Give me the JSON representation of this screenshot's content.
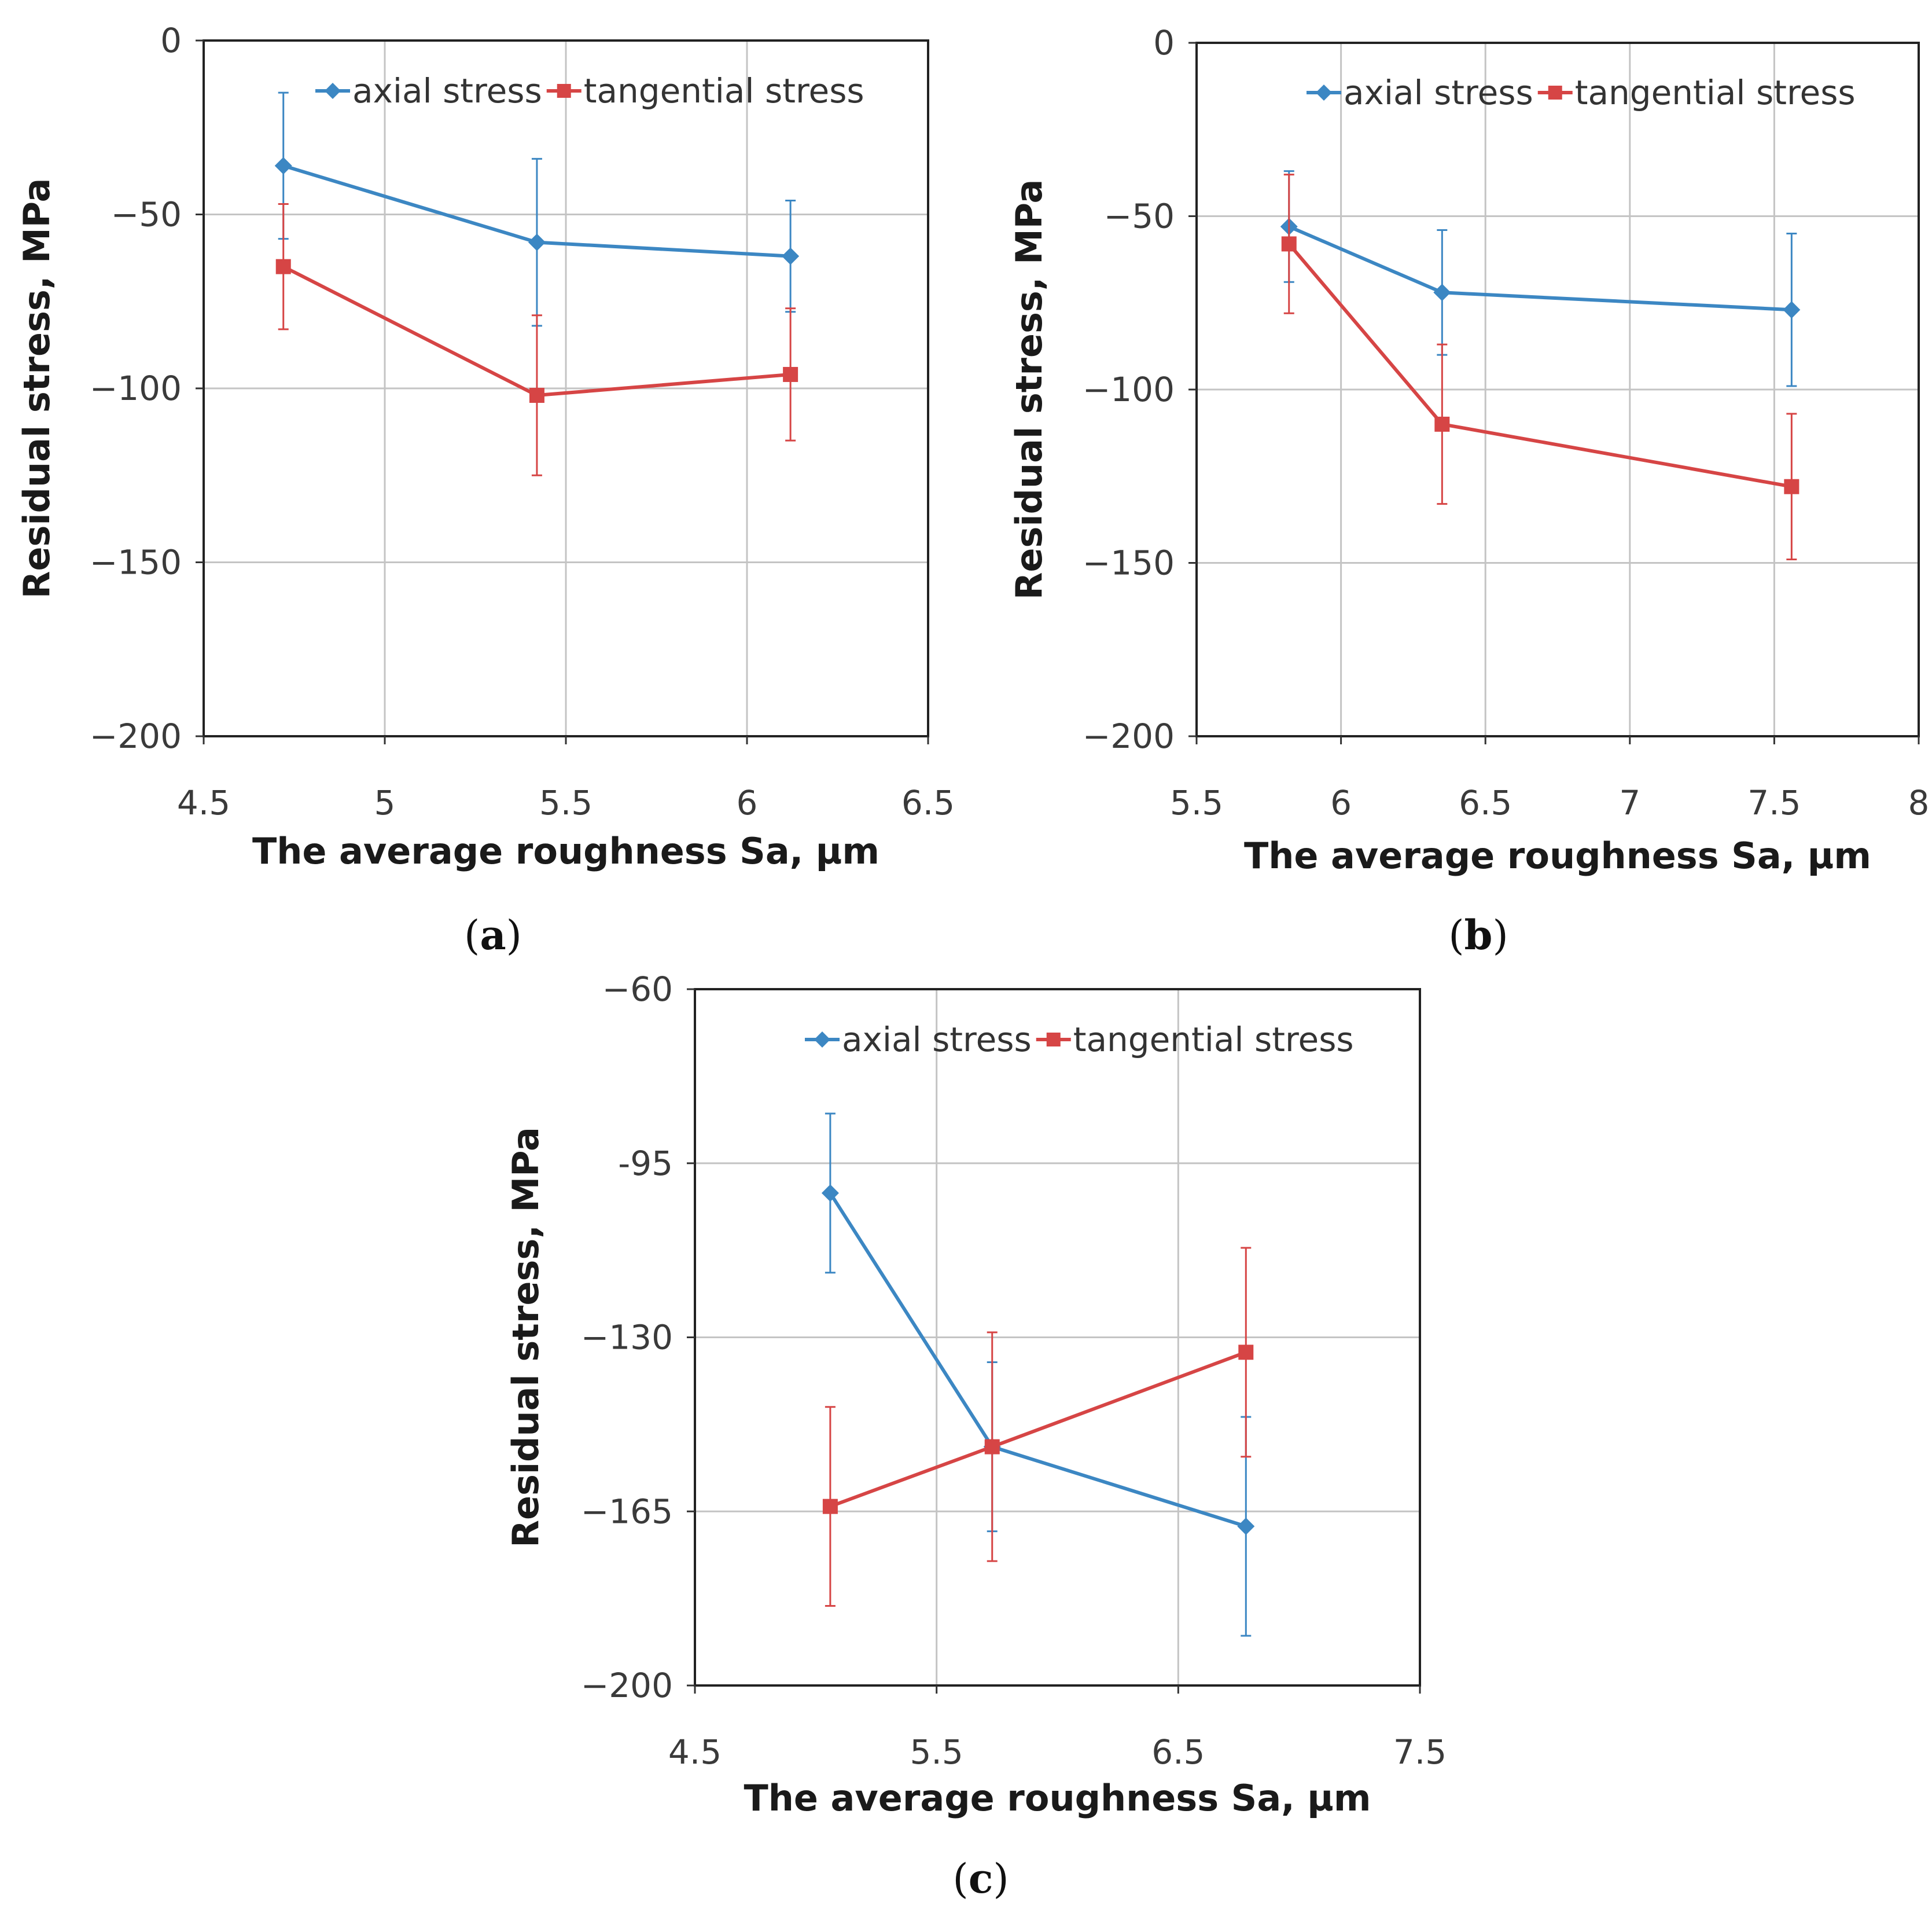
{
  "chart_data": [
    {
      "panel": "a",
      "type": "line",
      "caption": {
        "open": "(",
        "letter": "a",
        "close": ")"
      },
      "xlabel": "The average roughness Sa, µm",
      "ylabel": "Residual stress, MPa",
      "xlim": [
        4.5,
        6.5
      ],
      "ylim": [
        -200,
        0
      ],
      "xticks": [
        4.5,
        5,
        5.5,
        6,
        6.5
      ],
      "xtick_labels": [
        "4.5",
        "5",
        "5.5",
        "6",
        "6.5"
      ],
      "yticks": [
        0,
        -50,
        -100,
        -150,
        -200
      ],
      "ytick_labels": [
        "0",
        "−50",
        "−100",
        "−150",
        "−200"
      ],
      "grid": true,
      "legend": "top",
      "series": [
        {
          "name": "axial stress",
          "color": "#3c87c3",
          "marker": "diamond",
          "x": [
            4.72,
            5.42,
            6.12
          ],
          "y": [
            -36,
            -58,
            -62
          ],
          "err": [
            21,
            24,
            16
          ]
        },
        {
          "name": "tangential stress",
          "color": "#d64545",
          "marker": "square",
          "x": [
            4.72,
            5.42,
            6.12
          ],
          "y": [
            -65,
            -102,
            -96
          ],
          "err": [
            18,
            23,
            19
          ]
        }
      ]
    },
    {
      "panel": "b",
      "type": "line",
      "caption": {
        "open": "(",
        "letter": "b",
        "close": ")"
      },
      "xlabel": "The average roughness Sa, µm",
      "ylabel": "Residual stress, MPa",
      "xlim": [
        5.5,
        8
      ],
      "ylim": [
        -200,
        0
      ],
      "xticks": [
        5.5,
        6,
        6.5,
        7,
        7.5,
        8
      ],
      "xtick_labels": [
        "5.5",
        "6",
        "6.5",
        "7",
        "7.5",
        "8"
      ],
      "yticks": [
        0,
        -50,
        -100,
        -150,
        -200
      ],
      "ytick_labels": [
        "0",
        "−50",
        "−100",
        "−150",
        "−200"
      ],
      "grid": true,
      "legend": "top",
      "series": [
        {
          "name": "axial stress",
          "color": "#3c87c3",
          "marker": "diamond",
          "x": [
            5.82,
            6.35,
            7.56
          ],
          "y": [
            -53,
            -72,
            -77
          ],
          "err": [
            16,
            18,
            22
          ]
        },
        {
          "name": "tangential stress",
          "color": "#d64545",
          "marker": "square",
          "x": [
            5.82,
            6.35,
            7.56
          ],
          "y": [
            -58,
            -110,
            -128
          ],
          "err": [
            20,
            23,
            21
          ]
        }
      ]
    },
    {
      "panel": "c",
      "type": "line",
      "caption": {
        "open": "(",
        "letter": "c",
        "close": ")"
      },
      "xlabel": "The average roughness Sa, µm",
      "ylabel": "Residual stress, MPa",
      "xlim": [
        4.5,
        7.5
      ],
      "ylim": [
        -200,
        -60
      ],
      "xticks": [
        4.5,
        5.5,
        6.5,
        7.5
      ],
      "xtick_labels": [
        "4.5",
        "5.5",
        "6.5",
        "7.5"
      ],
      "yticks": [
        -60,
        -95,
        -130,
        -165,
        -200
      ],
      "ytick_labels": [
        "−60",
        "-95",
        "−130",
        "−165",
        "−200"
      ],
      "grid": true,
      "legend": "top",
      "series": [
        {
          "name": "axial stress",
          "color": "#3c87c3",
          "marker": "diamond",
          "x": [
            5.06,
            5.73,
            6.78
          ],
          "y": [
            -101,
            -152,
            -168
          ],
          "err": [
            16,
            17,
            22
          ]
        },
        {
          "name": "tangential stress",
          "color": "#d64545",
          "marker": "square",
          "x": [
            5.06,
            5.73,
            6.78
          ],
          "y": [
            -164,
            -152,
            -133
          ],
          "err": [
            20,
            23,
            21
          ]
        }
      ]
    }
  ]
}
